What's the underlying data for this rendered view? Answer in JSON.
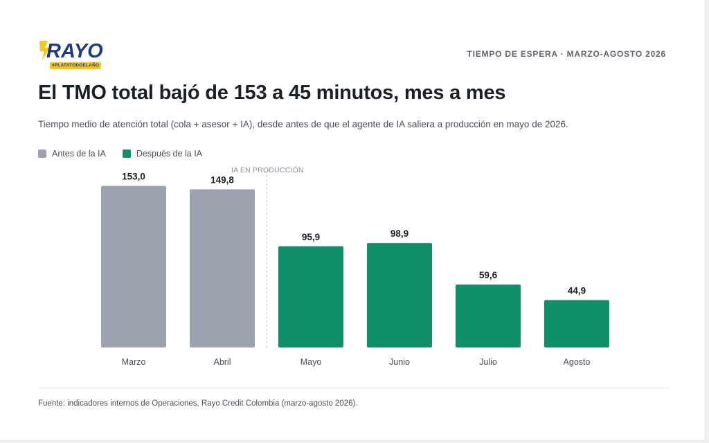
{
  "brand": {
    "name": "RAYO",
    "tagline": "#PLATATODOELAÑO",
    "colors": {
      "primary": "#1f3b7a",
      "accent": "#f6c81f"
    }
  },
  "header": {
    "kicker": "TIEMPO DE ESPERA · MARZO-AGOSTO 2026",
    "title": "El TMO total bajó de 153 a 45 minutos, mes a mes",
    "subtitle": "Tiempo medio de atención total (cola + asesor + IA), desde antes de que el agente de IA saliera a producción en mayo de 2026."
  },
  "legend": [
    {
      "label": "Antes de la IA",
      "color": "#9ca3af"
    },
    {
      "label": "Después de la IA",
      "color": "#0f8f6a"
    }
  ],
  "chart_data": {
    "type": "bar",
    "categories": [
      "Marzo",
      "Abril",
      "Mayo",
      "Junio",
      "Julio",
      "Agosto"
    ],
    "values": [
      153.0,
      149.8,
      95.9,
      98.9,
      59.6,
      44.9
    ],
    "value_labels": [
      "153,0",
      "149,8",
      "95,9",
      "98,9",
      "59,6",
      "44,9"
    ],
    "groups": [
      "Antes de la IA",
      "Antes de la IA",
      "Después de la IA",
      "Después de la IA",
      "Después de la IA",
      "Después de la IA"
    ],
    "colors": {
      "Antes de la IA": "#9ca3af",
      "Después de la IA": "#0f8f6a"
    },
    "ylim": [
      0,
      160
    ],
    "grid": false,
    "legend_position": "top-left",
    "annotation": {
      "text": "IA EN PRODUCCIÓN",
      "between": [
        "Abril",
        "Mayo"
      ]
    }
  },
  "footer": {
    "source": "Fuente: indicadores internos de Operaciones, Rayo Credit Colombia (marzo-agosto 2026)."
  }
}
